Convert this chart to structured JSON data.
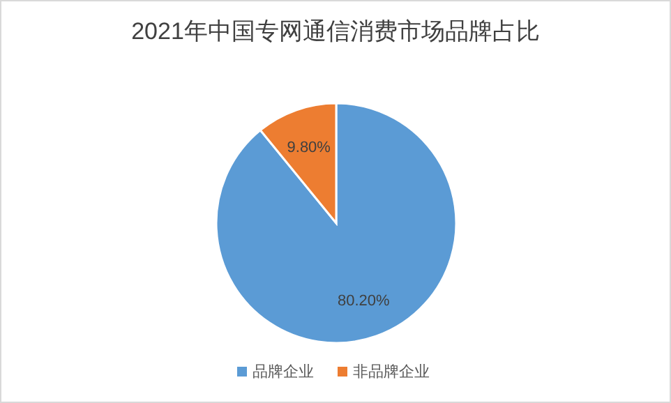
{
  "chart_data": {
    "type": "pie",
    "title": "2021年中国专网通信消费市场品牌占比",
    "categories": [
      "品牌企业",
      "非品牌企业"
    ],
    "values": [
      80.2,
      9.8
    ],
    "value_labels": [
      "80.20%",
      "9.80%"
    ],
    "colors": [
      "#5b9bd5",
      "#ed7d31"
    ],
    "legend": "bottom"
  }
}
